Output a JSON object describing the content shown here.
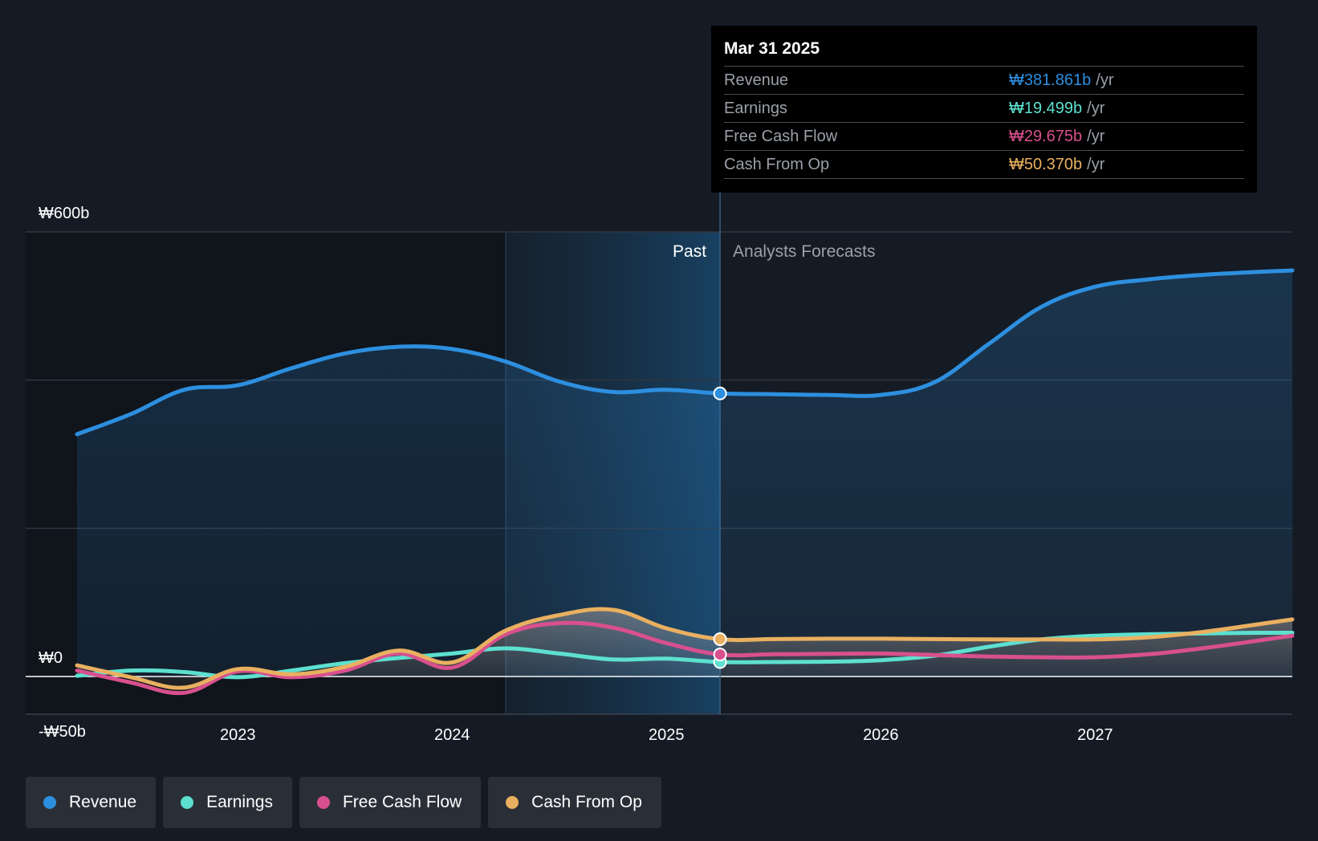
{
  "tooltip": {
    "date": "Mar 31 2025",
    "rows": [
      {
        "name": "Revenue",
        "value": "₩381.861b",
        "unit": "/yr",
        "color": "#2d8fdf"
      },
      {
        "name": "Earnings",
        "value": "₩19.499b",
        "unit": "/yr",
        "color": "#5de0cf"
      },
      {
        "name": "Free Cash Flow",
        "value": "₩29.675b",
        "unit": "/yr",
        "color": "#d8508e"
      },
      {
        "name": "Cash From Op",
        "value": "₩50.370b",
        "unit": "/yr",
        "color": "#e9b060"
      }
    ]
  },
  "legend": [
    {
      "label": "Revenue",
      "color": "#2d8fdf"
    },
    {
      "label": "Earnings",
      "color": "#5de0cf"
    },
    {
      "label": "Free Cash Flow",
      "color": "#d8508e"
    },
    {
      "label": "Cash From Op",
      "color": "#e9b060"
    }
  ],
  "chart_data": {
    "type": "line",
    "y_tick_labels": [
      "₩600b",
      "₩0",
      "-₩50b"
    ],
    "ylim": [
      -50,
      600
    ],
    "xlim": [
      2022.25,
      2027.92
    ],
    "x_tick_labels": [
      "2023",
      "2024",
      "2025",
      "2026",
      "2027"
    ],
    "x_ticks": [
      2023,
      2024,
      2025,
      2026,
      2027
    ],
    "region_labels": {
      "past": "Past",
      "forecast": "Analysts Forecasts"
    },
    "past_end": 2025.25,
    "highlight_start": 2024.25,
    "series": [
      {
        "name": "Revenue",
        "color": "#2d8fdf",
        "x": [
          2022.25,
          2022.5,
          2022.75,
          2023.0,
          2023.25,
          2023.5,
          2023.75,
          2024.0,
          2024.25,
          2024.5,
          2024.75,
          2025.0,
          2025.25,
          2025.5,
          2025.75,
          2026.0,
          2026.25,
          2026.5,
          2026.75,
          2027.0,
          2027.25,
          2027.5,
          2027.75,
          2027.92
        ],
        "y": [
          327,
          354,
          387,
          393,
          416,
          436,
          445,
          442,
          425,
          398,
          384,
          387,
          382,
          381,
          380,
          380,
          397,
          448,
          499,
          526,
          536,
          542,
          546,
          548
        ]
      },
      {
        "name": "Earnings",
        "color": "#5de0cf",
        "x": [
          2022.25,
          2022.5,
          2022.75,
          2023.0,
          2023.25,
          2023.5,
          2023.75,
          2024.0,
          2024.25,
          2024.5,
          2024.75,
          2025.0,
          2025.25,
          2025.5,
          2025.75,
          2026.0,
          2026.25,
          2026.5,
          2026.75,
          2027.0,
          2027.25,
          2027.5,
          2027.75,
          2027.92
        ],
        "y": [
          1,
          8,
          6,
          -1,
          8,
          18,
          25,
          31,
          38,
          31,
          23,
          24,
          19.5,
          19.5,
          20,
          22,
          28,
          40,
          50,
          55,
          57,
          58,
          59,
          59
        ]
      },
      {
        "name": "Free Cash Flow",
        "color": "#d8508e",
        "x": [
          2022.25,
          2022.5,
          2022.75,
          2023.0,
          2023.25,
          2023.5,
          2023.75,
          2024.0,
          2024.25,
          2024.5,
          2024.75,
          2025.0,
          2025.25,
          2025.5,
          2025.75,
          2026.0,
          2026.25,
          2026.5,
          2026.75,
          2027.0,
          2027.25,
          2027.5,
          2027.75,
          2027.92
        ],
        "y": [
          8,
          -8,
          -22,
          7,
          -1,
          8,
          31,
          12,
          57,
          72,
          66,
          45,
          29.7,
          30,
          30.5,
          31,
          29,
          27,
          26,
          26,
          30,
          38,
          48,
          55
        ]
      },
      {
        "name": "Cash From Op",
        "color": "#e9b060",
        "x": [
          2022.25,
          2022.5,
          2022.75,
          2023.0,
          2023.25,
          2023.5,
          2023.75,
          2024.0,
          2024.25,
          2024.5,
          2024.75,
          2025.0,
          2025.25,
          2025.5,
          2025.75,
          2026.0,
          2026.25,
          2026.5,
          2026.75,
          2027.0,
          2027.25,
          2027.5,
          2027.75,
          2027.92
        ],
        "y": [
          15,
          -1,
          -15,
          10,
          3,
          13,
          35,
          19,
          62,
          83,
          90,
          65,
          50.4,
          50.5,
          51,
          51,
          50.5,
          50,
          50,
          50,
          53,
          60,
          70,
          77
        ]
      }
    ]
  }
}
